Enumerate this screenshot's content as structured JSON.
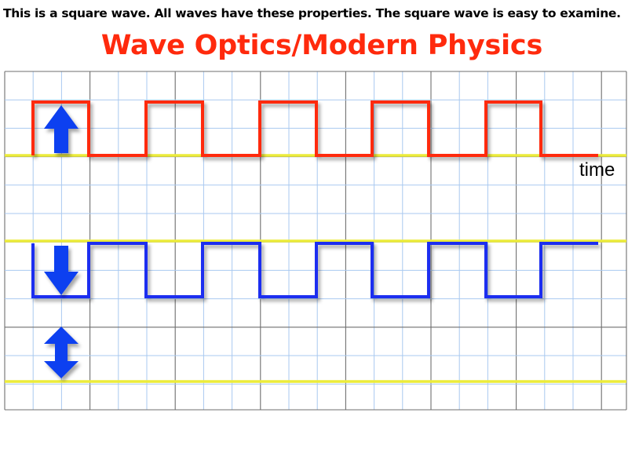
{
  "caption": "This is a square wave. All waves have these properties. The square wave is easy to examine.",
  "title": "Wave Optics/Modern Physics",
  "time_label": "time",
  "colors": {
    "title": "#ff2a0d",
    "grid_minor": "#a9c9f0",
    "grid_major": "#6f6f6f",
    "baseline": "#ecec3a",
    "wave_red": "#ff2a0d",
    "wave_blue": "#1e2ff0",
    "wave_purple": "#7a2a8a",
    "arrow": "#1040f0"
  },
  "waves": [
    {
      "name": "red-square-wave",
      "color_key": "wave_red",
      "arrow": "up"
    },
    {
      "name": "blue-square-wave",
      "color_key": "wave_blue",
      "arrow": "down"
    },
    {
      "name": "sum-flat-wave",
      "color_key": "wave_purple",
      "arrow": "both"
    }
  ]
}
